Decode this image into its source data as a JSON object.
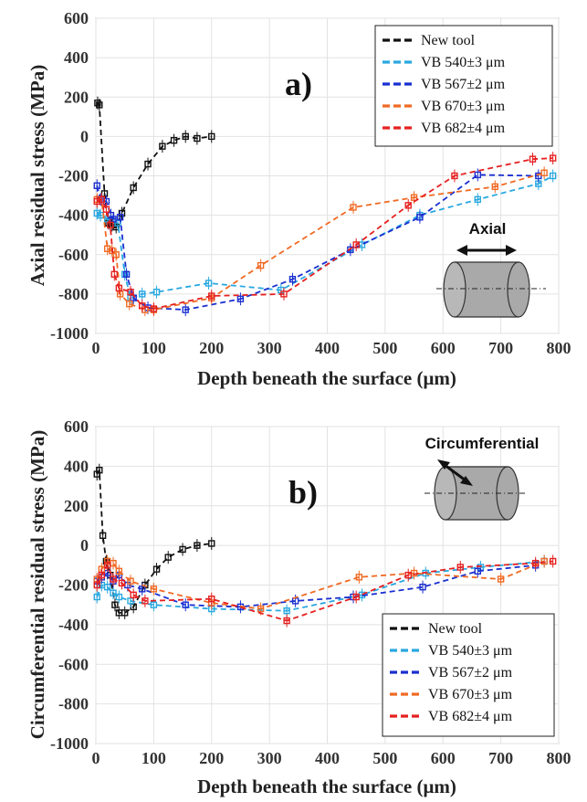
{
  "colors": {
    "new_tool": "#111111",
    "vb540": "#29a8e0",
    "vb567": "#1a2fd0",
    "vb670": "#f06a24",
    "vb682": "#e62020"
  },
  "chart_data": [
    {
      "type": "line",
      "panel": "a)",
      "xlabel": "Depth beneath the surface (μm)",
      "ylabel": "Axial residual stress (MPa)",
      "xlim": [
        0,
        800
      ],
      "ylim": [
        -1000,
        600
      ],
      "xticks": [
        0,
        100,
        200,
        300,
        400,
        500,
        600,
        700,
        800
      ],
      "yticks": [
        600,
        400,
        200,
        0,
        -200,
        -400,
        -600,
        -800,
        -1000
      ],
      "legend_position": "top-right",
      "inset_label": "Axial",
      "series": [
        {
          "name": "New tool",
          "color_key": "new_tool",
          "x": [
            3,
            6,
            15,
            22,
            28,
            35,
            45,
            65,
            90,
            115,
            135,
            155,
            175,
            200
          ],
          "y": [
            170,
            160,
            -290,
            -440,
            -450,
            -460,
            -390,
            -260,
            -140,
            -50,
            -20,
            0,
            -10,
            0
          ]
        },
        {
          "name": "VB 540±3 μm",
          "color_key": "vb540",
          "x": [
            2,
            8,
            20,
            38,
            50,
            60,
            80,
            105,
            195,
            320,
            460,
            560,
            660,
            765,
            790
          ],
          "y": [
            -390,
            -400,
            -420,
            -440,
            -700,
            -820,
            -800,
            -790,
            -745,
            -780,
            -550,
            -400,
            -320,
            -240,
            -200
          ]
        },
        {
          "name": "VB 567±2 μm",
          "color_key": "vb567",
          "x": [
            2,
            8,
            18,
            26,
            30,
            42,
            53,
            65,
            90,
            155,
            250,
            340,
            440,
            560,
            660,
            765
          ],
          "y": [
            -250,
            -320,
            -330,
            -400,
            -420,
            -410,
            -700,
            -820,
            -870,
            -880,
            -825,
            -725,
            -575,
            -410,
            -195,
            -200
          ]
        },
        {
          "name": "VB 670±3 μm",
          "color_key": "vb670",
          "x": [
            2,
            10,
            20,
            28,
            35,
            42,
            58,
            85,
            100,
            200,
            285,
            445,
            550,
            690,
            775
          ],
          "y": [
            -320,
            -320,
            -570,
            -580,
            -600,
            -800,
            -850,
            -880,
            -880,
            -820,
            -655,
            -360,
            -310,
            -255,
            -185
          ]
        },
        {
          "name": "VB 682±4 μm",
          "color_key": "vb682",
          "x": [
            2,
            10,
            18,
            25,
            32,
            40,
            60,
            80,
            100,
            200,
            325,
            450,
            540,
            620,
            755,
            790
          ],
          "y": [
            -330,
            -320,
            -370,
            -450,
            -700,
            -770,
            -790,
            -860,
            -875,
            -810,
            -800,
            -550,
            -350,
            -200,
            -115,
            -110
          ]
        }
      ]
    },
    {
      "type": "line",
      "panel": "b)",
      "xlabel": "Depth beneath the surface (μm)",
      "ylabel": "Circumferential residual stress (MPa)",
      "xlim": [
        0,
        800
      ],
      "ylim": [
        -1000,
        600
      ],
      "xticks": [
        0,
        100,
        200,
        300,
        400,
        500,
        600,
        700,
        800
      ],
      "yticks": [
        600,
        400,
        200,
        0,
        -200,
        -400,
        -600,
        -800,
        -1000
      ],
      "legend_position": "bottom-right",
      "inset_label": "Circumferential",
      "series": [
        {
          "name": "New tool",
          "color_key": "new_tool",
          "x": [
            2,
            6,
            12,
            18,
            25,
            33,
            40,
            50,
            65,
            85,
            105,
            125,
            150,
            175,
            200
          ],
          "y": [
            360,
            380,
            50,
            -80,
            -150,
            -300,
            -340,
            -340,
            -310,
            -200,
            -120,
            -60,
            -20,
            0,
            10
          ]
        },
        {
          "name": "VB 540±3 μm",
          "color_key": "vb540",
          "x": [
            2,
            10,
            20,
            30,
            40,
            60,
            100,
            200,
            330,
            460,
            570,
            665,
            775
          ],
          "y": [
            -260,
            -200,
            -210,
            -240,
            -260,
            -280,
            -300,
            -320,
            -330,
            -250,
            -140,
            -110,
            -80
          ]
        },
        {
          "name": "VB 567±2 μm",
          "color_key": "vb567",
          "x": [
            2,
            10,
            20,
            30,
            40,
            55,
            80,
            155,
            250,
            345,
            445,
            565,
            660,
            760
          ],
          "y": [
            -180,
            -160,
            -140,
            -180,
            -150,
            -200,
            -220,
            -300,
            -310,
            -280,
            -260,
            -210,
            -130,
            -100
          ]
        },
        {
          "name": "VB 670±3 μm",
          "color_key": "vb670",
          "x": [
            2,
            10,
            20,
            30,
            40,
            60,
            100,
            200,
            285,
            455,
            550,
            700,
            775
          ],
          "y": [
            -170,
            -120,
            -80,
            -90,
            -130,
            -180,
            -220,
            -290,
            -320,
            -160,
            -140,
            -170,
            -80
          ]
        },
        {
          "name": "VB 682±4 μm",
          "color_key": "vb682",
          "x": [
            2,
            10,
            20,
            30,
            45,
            65,
            85,
            200,
            330,
            450,
            540,
            630,
            760,
            790
          ],
          "y": [
            -200,
            -150,
            -100,
            -170,
            -190,
            -250,
            -280,
            -270,
            -380,
            -260,
            -150,
            -110,
            -90,
            -80
          ]
        }
      ]
    }
  ]
}
